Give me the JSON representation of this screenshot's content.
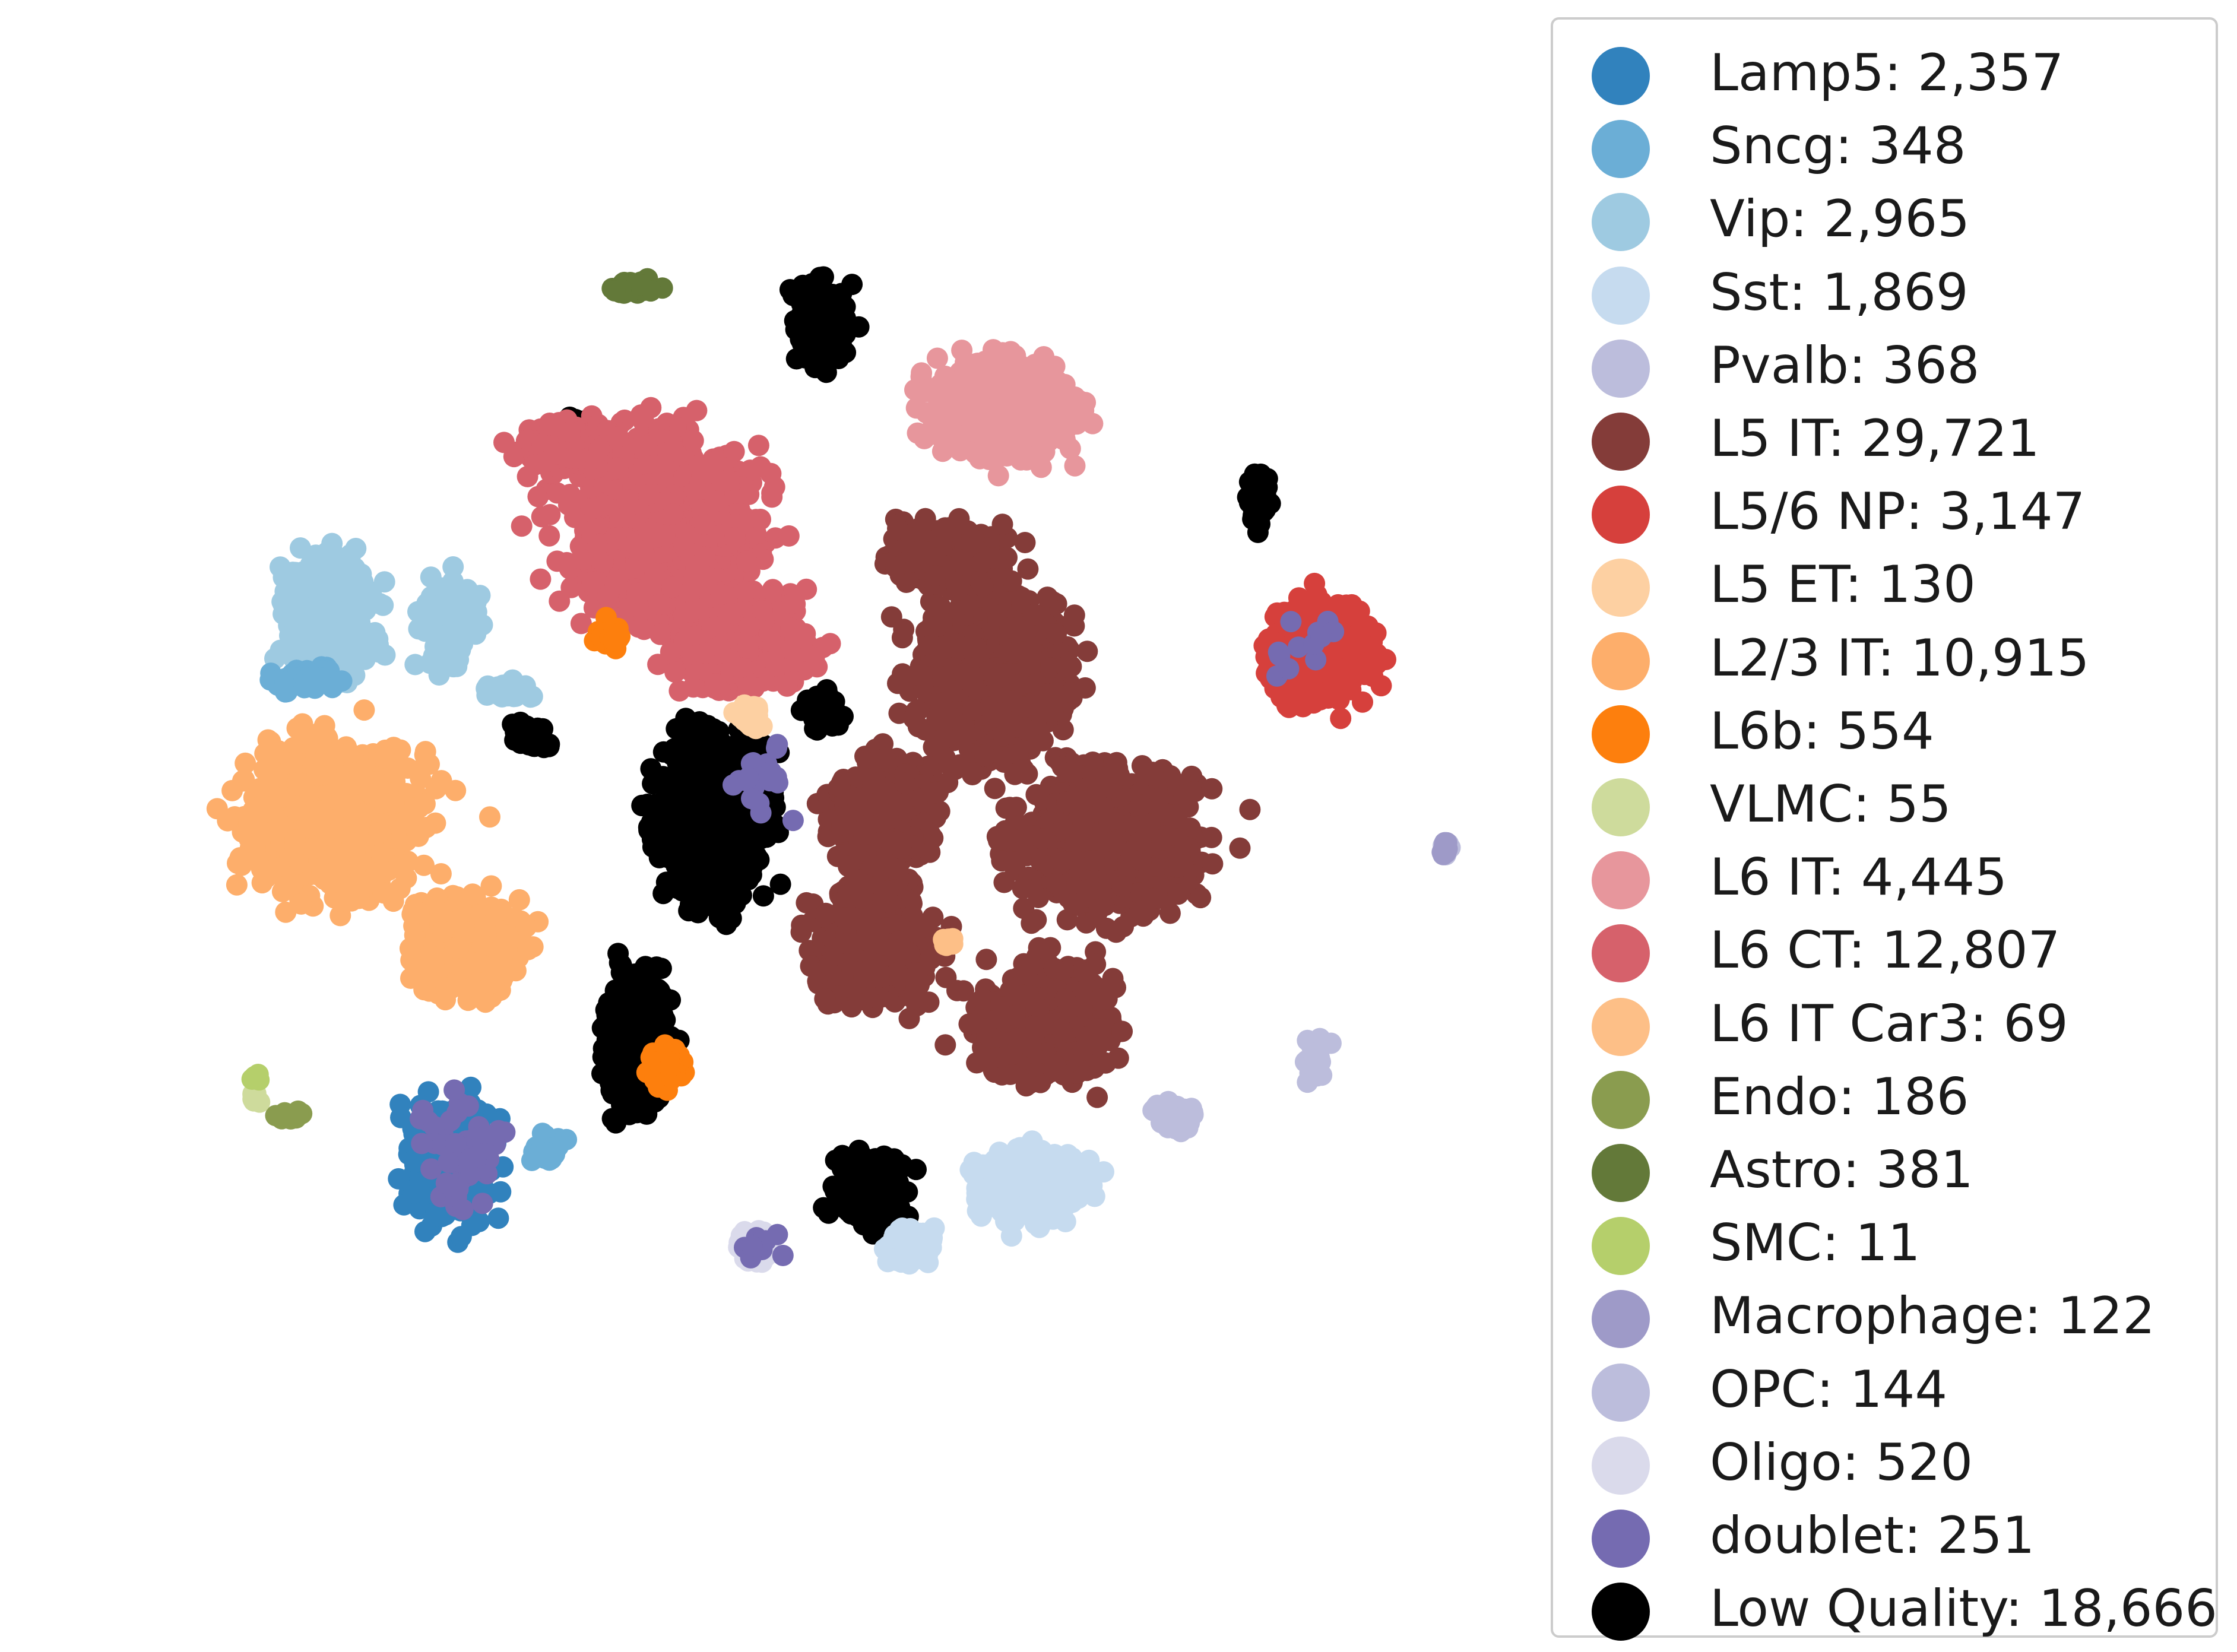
{
  "chart_data": {
    "type": "scatter",
    "title": "",
    "xlabel": "",
    "ylabel": "",
    "grid": false,
    "axes_visible": false,
    "legend_placement": "right, outside plot",
    "series": [
      {
        "name": "Lamp5: 2,357",
        "color": "#3182bd",
        "count": 2357,
        "clusters": [
          {
            "cx": -0.6,
            "cy": -0.57,
            "rx": 0.1,
            "ry": 0.14,
            "n": 420
          }
        ]
      },
      {
        "name": "Sncg: 348",
        "color": "#6baed6",
        "count": 348,
        "clusters": [
          {
            "cx": -0.83,
            "cy": 0.21,
            "rx": 0.08,
            "ry": 0.03,
            "n": 60
          },
          {
            "cx": -0.44,
            "cy": -0.55,
            "rx": 0.04,
            "ry": 0.04,
            "n": 30
          }
        ]
      },
      {
        "name": "Vip: 2,965",
        "color": "#9ecae1",
        "count": 2965,
        "clusters": [
          {
            "cx": -0.79,
            "cy": 0.32,
            "rx": 0.11,
            "ry": 0.15,
            "n": 420
          },
          {
            "cx": -0.6,
            "cy": 0.3,
            "rx": 0.07,
            "ry": 0.11,
            "n": 180
          },
          {
            "cx": -0.5,
            "cy": 0.19,
            "rx": 0.06,
            "ry": 0.02,
            "n": 40
          }
        ]
      },
      {
        "name": "Sst: 1,869",
        "color": "#c6dbef",
        "count": 1869,
        "clusters": [
          {
            "cx": 0.34,
            "cy": -0.6,
            "rx": 0.14,
            "ry": 0.08,
            "n": 380
          },
          {
            "cx": 0.14,
            "cy": -0.7,
            "rx": 0.06,
            "ry": 0.05,
            "n": 80
          }
        ]
      },
      {
        "name": "Pvalb: 368",
        "color": "#bcbddc",
        "count": 368,
        "clusters": [
          {
            "cx": 0.56,
            "cy": -0.49,
            "rx": 0.05,
            "ry": 0.03,
            "n": 60
          },
          {
            "cx": 0.79,
            "cy": -0.4,
            "rx": 0.03,
            "ry": 0.05,
            "n": 30
          },
          {
            "cx": 1.0,
            "cy": -0.06,
            "rx": 0.01,
            "ry": 0.02,
            "n": 14
          }
        ]
      },
      {
        "name": "L5 IT: 29,721",
        "color": "#843c39",
        "count": 29721,
        "clusters": [
          {
            "cx": 0.27,
            "cy": 0.22,
            "rx": 0.17,
            "ry": 0.2,
            "n": 1100
          },
          {
            "cx": 0.46,
            "cy": -0.05,
            "rx": 0.21,
            "ry": 0.17,
            "n": 1100
          },
          {
            "cx": 0.09,
            "cy": -0.22,
            "rx": 0.14,
            "ry": 0.14,
            "n": 700
          },
          {
            "cx": 0.1,
            "cy": -0.01,
            "rx": 0.12,
            "ry": 0.14,
            "n": 600
          },
          {
            "cx": 0.36,
            "cy": -0.34,
            "rx": 0.16,
            "ry": 0.13,
            "n": 700
          },
          {
            "cx": 0.2,
            "cy": 0.41,
            "rx": 0.14,
            "ry": 0.07,
            "n": 300
          }
        ]
      },
      {
        "name": "L5/6 NP: 3,147",
        "color": "#d6403c",
        "count": 3147,
        "clusters": [
          {
            "cx": 0.8,
            "cy": 0.25,
            "rx": 0.13,
            "ry": 0.11,
            "n": 520
          }
        ]
      },
      {
        "name": "L5 ET: 130",
        "color": "#fdd0a2",
        "count": 130,
        "clusters": [
          {
            "cx": -0.12,
            "cy": 0.15,
            "rx": 0.03,
            "ry": 0.03,
            "n": 22
          }
        ]
      },
      {
        "name": "L2/3 IT: 10,915",
        "color": "#fdae6b",
        "count": 10915,
        "clusters": [
          {
            "cx": -0.78,
            "cy": -0.01,
            "rx": 0.22,
            "ry": 0.18,
            "n": 1100
          },
          {
            "cx": -0.57,
            "cy": -0.22,
            "rx": 0.14,
            "ry": 0.12,
            "n": 450
          }
        ]
      },
      {
        "name": "L6b: 554",
        "color": "#fd7f0d",
        "count": 554,
        "clusters": [
          {
            "cx": -0.25,
            "cy": -0.41,
            "rx": 0.04,
            "ry": 0.05,
            "n": 80
          },
          {
            "cx": -0.34,
            "cy": 0.28,
            "rx": 0.04,
            "ry": 0.03,
            "n": 40
          }
        ]
      },
      {
        "name": "VLMC: 55",
        "color": "#cedb9c",
        "count": 55,
        "clusters": [
          {
            "cx": -0.91,
            "cy": -0.46,
            "rx": 0.015,
            "ry": 0.015,
            "n": 10
          }
        ]
      },
      {
        "name": "L6 IT: 4,445",
        "color": "#e7969c",
        "count": 4445,
        "clusters": [
          {
            "cx": 0.28,
            "cy": 0.64,
            "rx": 0.17,
            "ry": 0.12,
            "n": 650
          }
        ]
      },
      {
        "name": "L6 CT: 12,807",
        "color": "#d6616b",
        "count": 12807,
        "clusters": [
          {
            "cx": -0.26,
            "cy": 0.45,
            "rx": 0.22,
            "ry": 0.22,
            "n": 1100
          },
          {
            "cx": -0.13,
            "cy": 0.27,
            "rx": 0.17,
            "ry": 0.13,
            "n": 550
          },
          {
            "cx": -0.39,
            "cy": 0.58,
            "rx": 0.14,
            "ry": 0.06,
            "n": 250
          }
        ]
      },
      {
        "name": "L6 IT Car3: 69",
        "color": "#fdbf87",
        "count": 69,
        "clusters": [
          {
            "cx": 0.2,
            "cy": -0.21,
            "rx": 0.02,
            "ry": 0.02,
            "n": 12
          }
        ]
      },
      {
        "name": "Endo: 186",
        "color": "#8a9c4f",
        "count": 186,
        "clusters": [
          {
            "cx": -0.86,
            "cy": -0.49,
            "rx": 0.04,
            "ry": 0.01,
            "n": 30
          }
        ]
      },
      {
        "name": "Astro: 381",
        "color": "#637939",
        "count": 381,
        "clusters": [
          {
            "cx": -0.31,
            "cy": 0.84,
            "rx": 0.06,
            "ry": 0.015,
            "n": 45
          }
        ]
      },
      {
        "name": "SMC: 11",
        "color": "#b5cf6b",
        "count": 11,
        "clusters": [
          {
            "cx": -0.91,
            "cy": -0.43,
            "rx": 0.01,
            "ry": 0.01,
            "n": 4
          }
        ]
      },
      {
        "name": "Macrophage: 122",
        "color": "#9e9ac8",
        "count": 122,
        "clusters": [
          {
            "cx": 1.0,
            "cy": -0.06,
            "rx": 0.01,
            "ry": 0.02,
            "n": 14
          }
        ]
      },
      {
        "name": "OPC: 144",
        "color": "#bcbddc",
        "count": 144,
        "clusters": [
          {
            "cx": 0.58,
            "cy": -0.51,
            "rx": 0.03,
            "ry": 0.02,
            "n": 16
          }
        ]
      },
      {
        "name": "Oligo: 520",
        "color": "#dadaeb",
        "count": 520,
        "clusters": [
          {
            "cx": -0.11,
            "cy": -0.7,
            "rx": 0.04,
            "ry": 0.04,
            "n": 60
          }
        ]
      },
      {
        "name": "doublet: 251",
        "color": "#756bb1",
        "count": 251,
        "clusters": [
          {
            "cx": -0.57,
            "cy": -0.55,
            "rx": 0.12,
            "ry": 0.13,
            "n": 55
          },
          {
            "cx": -0.1,
            "cy": 0.05,
            "rx": 0.1,
            "ry": 0.1,
            "n": 20
          },
          {
            "cx": -0.1,
            "cy": -0.7,
            "rx": 0.05,
            "ry": 0.04,
            "n": 12
          },
          {
            "cx": 0.77,
            "cy": 0.26,
            "rx": 0.1,
            "ry": 0.09,
            "n": 12
          }
        ]
      },
      {
        "name": "Low Quality: 18,666",
        "color": "#000000",
        "count": 18666,
        "clusters": [
          {
            "cx": -0.18,
            "cy": -0.01,
            "rx": 0.14,
            "ry": 0.2,
            "n": 800
          },
          {
            "cx": -0.3,
            "cy": -0.36,
            "rx": 0.08,
            "ry": 0.18,
            "n": 350
          },
          {
            "cx": 0.08,
            "cy": -0.61,
            "rx": 0.09,
            "ry": 0.09,
            "n": 250
          },
          {
            "cx": 0.0,
            "cy": 0.78,
            "rx": 0.07,
            "ry": 0.1,
            "n": 220
          },
          {
            "cx": -0.39,
            "cy": 0.61,
            "rx": 0.04,
            "ry": 0.03,
            "n": 50
          },
          {
            "cx": 0.7,
            "cy": 0.5,
            "rx": 0.03,
            "ry": 0.06,
            "n": 60
          },
          {
            "cx": -0.47,
            "cy": 0.12,
            "rx": 0.05,
            "ry": 0.04,
            "n": 50
          },
          {
            "cx": 0.0,
            "cy": 0.16,
            "rx": 0.05,
            "ry": 0.04,
            "n": 50
          }
        ]
      }
    ]
  }
}
